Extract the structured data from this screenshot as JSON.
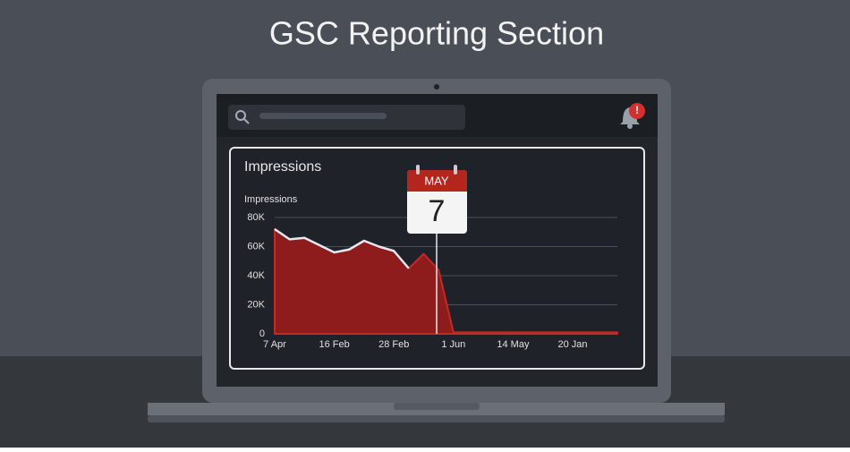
{
  "title": "GSC Reporting Section",
  "card_title": "Impressions",
  "calendar": {
    "month": "MAY",
    "day": "7"
  },
  "chart_data": {
    "type": "area",
    "y_label": "Impressions",
    "categories": [
      "7 Apr",
      null,
      null,
      null,
      "16 Feb",
      null,
      null,
      null,
      "28 Feb",
      null,
      null,
      null,
      "1 Jun",
      null,
      null,
      null,
      "14 May",
      null,
      null,
      null,
      "20 Jan",
      null,
      null,
      null
    ],
    "series": [
      {
        "color": "#8e1c1c",
        "values": [
          72000,
          65000,
          66000,
          61000,
          56000,
          58000,
          64000,
          60000,
          57000,
          45000,
          55000,
          44000,
          1000,
          1000,
          1000,
          1000,
          1000,
          1000,
          1000,
          1000,
          1000,
          1000,
          1000,
          1000
        ]
      },
      {
        "color": "#e6e8f0",
        "values": [
          72000,
          65000,
          66000,
          61000,
          56000,
          58000,
          64000,
          60000,
          57000,
          45000,
          null,
          null,
          null,
          null,
          null,
          null,
          null,
          null,
          null,
          null,
          null,
          null,
          null,
          null
        ]
      }
    ],
    "ylim": [
      0,
      80000
    ],
    "yticks": [
      0,
      {
        "value": 20000,
        "label": "20K"
      },
      {
        "value": 40000,
        "label": "40K"
      },
      {
        "value": 60000,
        "label": "60K"
      },
      {
        "value": 80000,
        "label": "80K"
      }
    ],
    "grid": true
  }
}
